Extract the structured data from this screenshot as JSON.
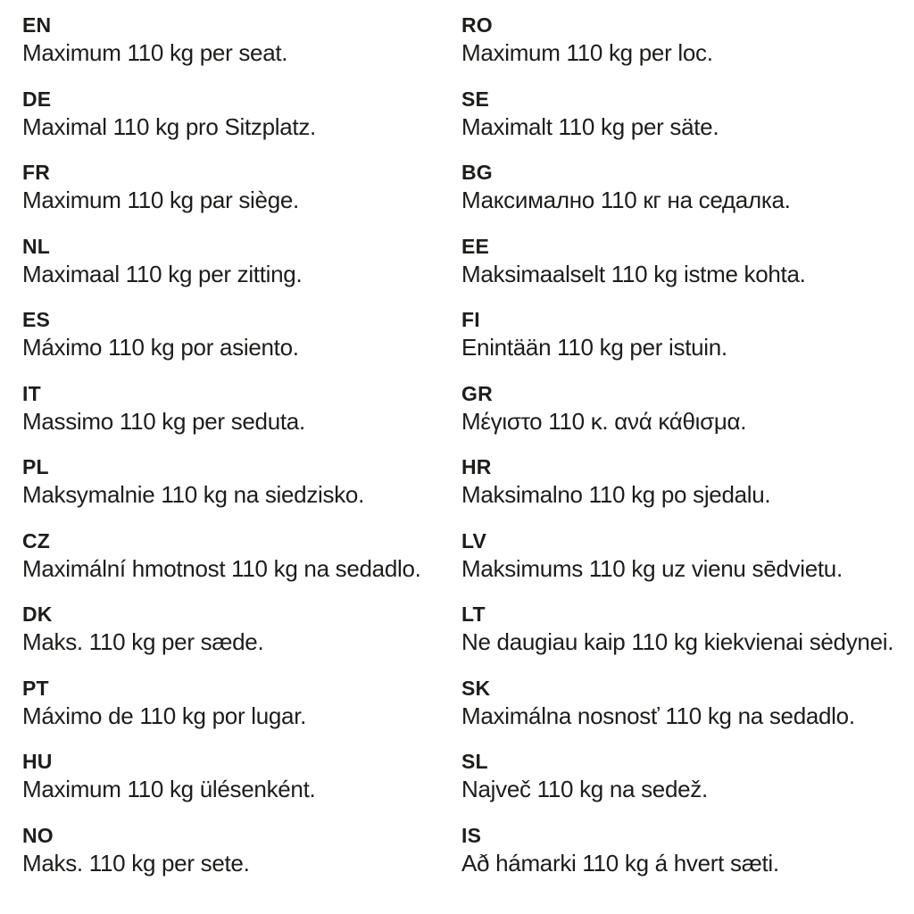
{
  "page": {
    "background_color": "#ffffff",
    "text_color": "#1d1d1b",
    "description": "Multilingual weight-limit notice, two columns of language codes with translations"
  },
  "columns": [
    {
      "entries": [
        {
          "code": "EN",
          "text": "Maximum 110 kg per seat."
        },
        {
          "code": "DE",
          "text": "Maximal 110 kg pro Sitzplatz."
        },
        {
          "code": "FR",
          "text": "Maximum 110 kg par siège."
        },
        {
          "code": "NL",
          "text": "Maximaal 110 kg per zitting."
        },
        {
          "code": "ES",
          "text": "Máximo 110 kg por asiento."
        },
        {
          "code": "IT",
          "text": "Massimo 110 kg per seduta."
        },
        {
          "code": "PL",
          "text": "Maksymalnie 110 kg na siedzisko."
        },
        {
          "code": "CZ",
          "text": "Maximální hmotnost 110 kg na sedadlo."
        },
        {
          "code": "DK",
          "text": "Maks. 110 kg per sæde."
        },
        {
          "code": "PT",
          "text": "Máximo de 110 kg por lugar."
        },
        {
          "code": "HU",
          "text": "Maximum 110 kg ülésenként."
        },
        {
          "code": "NO",
          "text": "Maks. 110 kg per sete."
        }
      ]
    },
    {
      "entries": [
        {
          "code": "RO",
          "text": "Maximum 110 kg per loc."
        },
        {
          "code": "SE",
          "text": "Maximalt 110 kg per säte."
        },
        {
          "code": "BG",
          "text": "Максимално 110 кг на седалка."
        },
        {
          "code": "EE",
          "text": "Maksimaalselt 110 kg istme kohta."
        },
        {
          "code": "FI",
          "text": "Enintään 110 kg per istuin."
        },
        {
          "code": "GR",
          "text": "Μέγιστο 110 κ. ανά κάθισμα."
        },
        {
          "code": "HR",
          "text": "Maksimalno 110 kg po sjedalu."
        },
        {
          "code": "LV",
          "text": "Maksimums 110 kg uz vienu sēdvietu."
        },
        {
          "code": "LT",
          "text": "Ne daugiau kaip 110 kg kiekvienai sėdynei."
        },
        {
          "code": "SK",
          "text": "Maximálna nosnosť 110 kg na sedadlo."
        },
        {
          "code": "SL",
          "text": "Največ 110 kg na sedež."
        },
        {
          "code": "IS",
          "text": "Að hámarki 110 kg á hvert sæti."
        }
      ]
    }
  ]
}
